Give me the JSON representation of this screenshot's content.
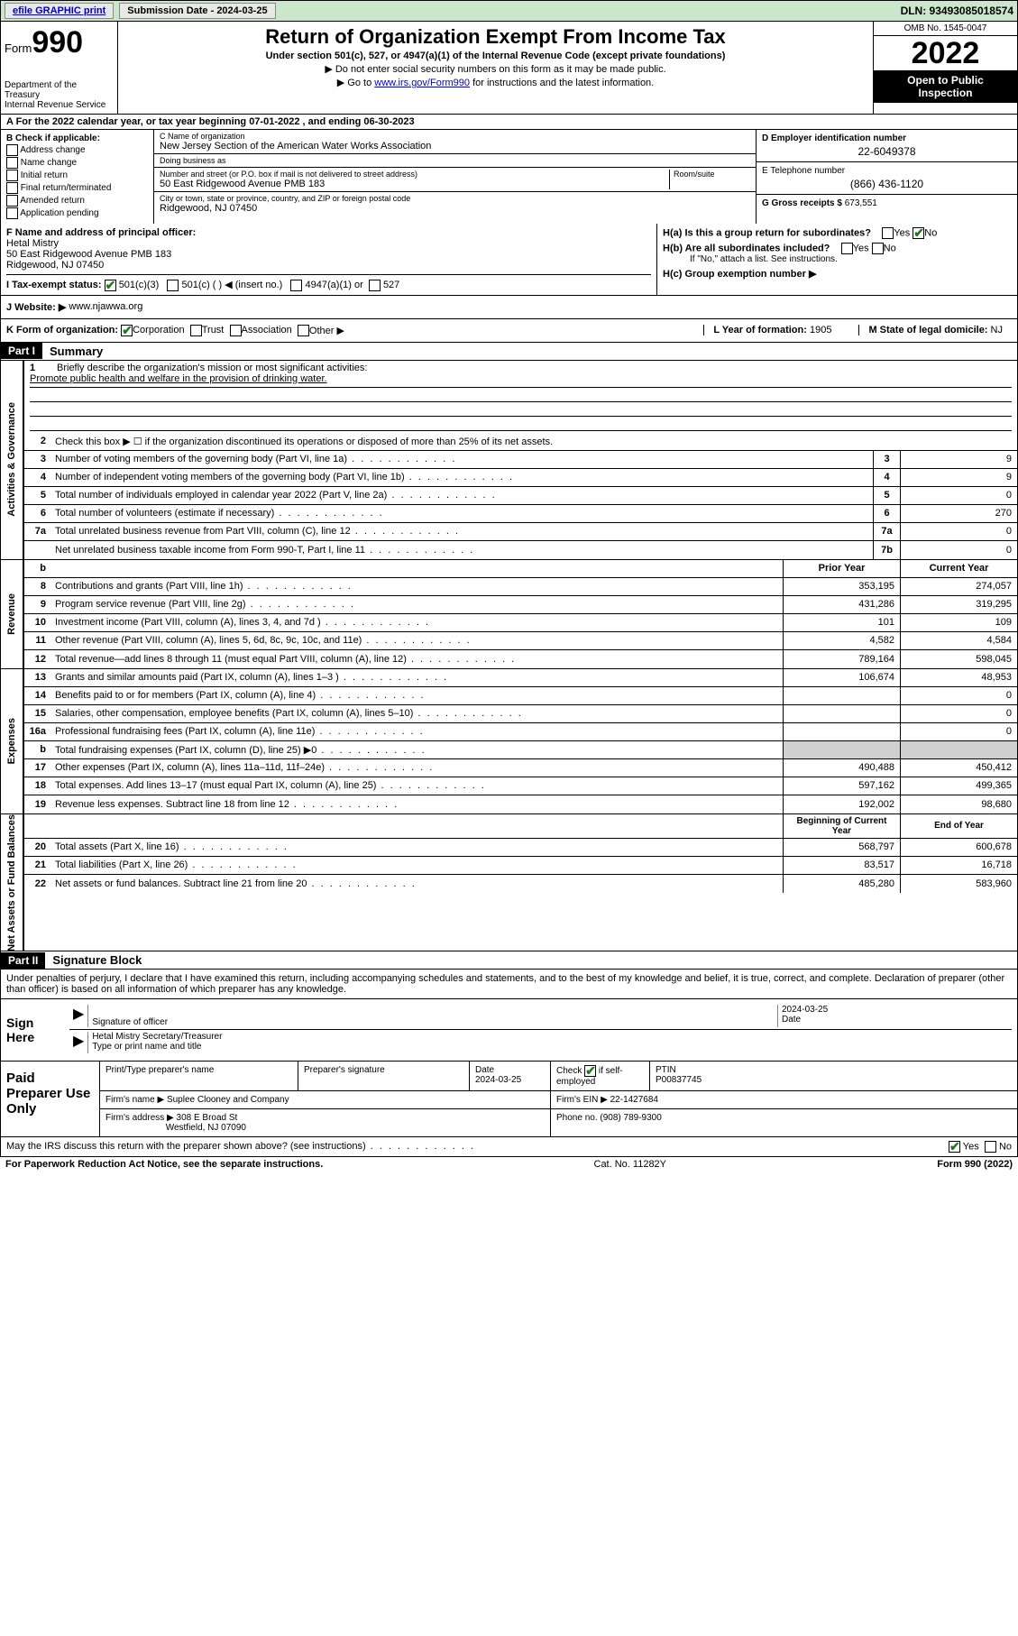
{
  "topbar": {
    "efile": "efile GRAPHIC print",
    "submission_label": "Submission Date - 2024-03-25",
    "dln": "DLN: 93493085018574"
  },
  "header": {
    "form_word": "Form",
    "form_num": "990",
    "dept": "Department of the Treasury\nInternal Revenue Service",
    "title": "Return of Organization Exempt From Income Tax",
    "sub": "Under section 501(c), 527, or 4947(a)(1) of the Internal Revenue Code (except private foundations)",
    "note1": "▶ Do not enter social security numbers on this form as it may be made public.",
    "note2_pre": "▶ Go to ",
    "note2_link": "www.irs.gov/Form990",
    "note2_post": " for instructions and the latest information.",
    "omb": "OMB No. 1545-0047",
    "year": "2022",
    "open1": "Open to Public",
    "open2": "Inspection"
  },
  "rowA": "A For the 2022 calendar year, or tax year beginning 07-01-2022   , and ending 06-30-2023",
  "boxB": {
    "hdr": "B Check if applicable:",
    "items": [
      "Address change",
      "Name change",
      "Initial return",
      "Final return/terminated",
      "Amended return",
      "Application pending"
    ]
  },
  "boxC": {
    "name_label": "C Name of organization",
    "name": "New Jersey Section of the American Water Works Association",
    "dba_label": "Doing business as",
    "dba": "",
    "street_label": "Number and street (or P.O. box if mail is not delivered to street address)",
    "room_label": "Room/suite",
    "street": "50 East Ridgewood Avenue PMB 183",
    "city_label": "City or town, state or province, country, and ZIP or foreign postal code",
    "city": "Ridgewood, NJ  07450"
  },
  "boxD": {
    "ein_label": "D Employer identification number",
    "ein": "22-6049378",
    "phone_label": "E Telephone number",
    "phone": "(866) 436-1120",
    "gross_label": "G Gross receipts $",
    "gross": "673,551"
  },
  "boxF": {
    "label": "F Name and address of principal officer:",
    "name": "Hetal Mistry",
    "addr1": "50 East Ridgewood Avenue PMB 183",
    "addr2": "Ridgewood, NJ  07450"
  },
  "boxH": {
    "ha": "H(a)  Is this a group return for subordinates?",
    "hb": "H(b)  Are all subordinates included?",
    "hb_note": "If \"No,\" attach a list. See instructions.",
    "hc": "H(c)  Group exemption number ▶",
    "yes": "Yes",
    "no": "No"
  },
  "boxI": {
    "label": "I   Tax-exempt status:",
    "o1": "501(c)(3)",
    "o2": "501(c) (  ) ◀ (insert no.)",
    "o3": "4947(a)(1) or",
    "o4": "527"
  },
  "boxJ": {
    "label": "J   Website: ▶ ",
    "val": "www.njawwa.org"
  },
  "boxK": {
    "label": "K Form of organization:",
    "o1": "Corporation",
    "o2": "Trust",
    "o3": "Association",
    "o4": "Other ▶",
    "yof_label": "L Year of formation:",
    "yof": "1905",
    "dom_label": "M State of legal domicile:",
    "dom": "NJ"
  },
  "part1": {
    "hdr": "Part I",
    "title": "Summary",
    "q1": "Briefly describe the organization's mission or most significant activities:",
    "mission": "Promote public health and welfare in the provision of drinking water.",
    "q2": "Check this box ▶ ☐  if the organization discontinued its operations or disposed of more than 25% of its net assets.",
    "lines_gov": [
      {
        "n": "3",
        "d": "Number of voting members of the governing body (Part VI, line 1a)",
        "b": "3",
        "v": "9"
      },
      {
        "n": "4",
        "d": "Number of independent voting members of the governing body (Part VI, line 1b)",
        "b": "4",
        "v": "9"
      },
      {
        "n": "5",
        "d": "Total number of individuals employed in calendar year 2022 (Part V, line 2a)",
        "b": "5",
        "v": "0"
      },
      {
        "n": "6",
        "d": "Total number of volunteers (estimate if necessary)",
        "b": "6",
        "v": "270"
      },
      {
        "n": "7a",
        "d": "Total unrelated business revenue from Part VIII, column (C), line 12",
        "b": "7a",
        "v": "0"
      },
      {
        "n": "",
        "d": "Net unrelated business taxable income from Form 990-T, Part I, line 11",
        "b": "7b",
        "v": "0"
      }
    ],
    "col_prior": "Prior Year",
    "col_curr": "Current Year",
    "lines_rev": [
      {
        "n": "8",
        "d": "Contributions and grants (Part VIII, line 1h)",
        "p": "353,195",
        "c": "274,057"
      },
      {
        "n": "9",
        "d": "Program service revenue (Part VIII, line 2g)",
        "p": "431,286",
        "c": "319,295"
      },
      {
        "n": "10",
        "d": "Investment income (Part VIII, column (A), lines 3, 4, and 7d )",
        "p": "101",
        "c": "109"
      },
      {
        "n": "11",
        "d": "Other revenue (Part VIII, column (A), lines 5, 6d, 8c, 9c, 10c, and 11e)",
        "p": "4,582",
        "c": "4,584"
      },
      {
        "n": "12",
        "d": "Total revenue—add lines 8 through 11 (must equal Part VIII, column (A), line 12)",
        "p": "789,164",
        "c": "598,045"
      }
    ],
    "lines_exp": [
      {
        "n": "13",
        "d": "Grants and similar amounts paid (Part IX, column (A), lines 1–3 )",
        "p": "106,674",
        "c": "48,953"
      },
      {
        "n": "14",
        "d": "Benefits paid to or for members (Part IX, column (A), line 4)",
        "p": "",
        "c": "0"
      },
      {
        "n": "15",
        "d": "Salaries, other compensation, employee benefits (Part IX, column (A), lines 5–10)",
        "p": "",
        "c": "0"
      },
      {
        "n": "16a",
        "d": "Professional fundraising fees (Part IX, column (A), line 11e)",
        "p": "",
        "c": "0"
      },
      {
        "n": "b",
        "d": "Total fundraising expenses (Part IX, column (D), line 25) ▶0",
        "p": "__shade__",
        "c": "__shade__"
      },
      {
        "n": "17",
        "d": "Other expenses (Part IX, column (A), lines 11a–11d, 11f–24e)",
        "p": "490,488",
        "c": "450,412"
      },
      {
        "n": "18",
        "d": "Total expenses. Add lines 13–17 (must equal Part IX, column (A), line 25)",
        "p": "597,162",
        "c": "499,365"
      },
      {
        "n": "19",
        "d": "Revenue less expenses. Subtract line 18 from line 12",
        "p": "192,002",
        "c": "98,680"
      }
    ],
    "col_begin": "Beginning of Current Year",
    "col_end": "End of Year",
    "lines_net": [
      {
        "n": "20",
        "d": "Total assets (Part X, line 16)",
        "p": "568,797",
        "c": "600,678"
      },
      {
        "n": "21",
        "d": "Total liabilities (Part X, line 26)",
        "p": "83,517",
        "c": "16,718"
      },
      {
        "n": "22",
        "d": "Net assets or fund balances. Subtract line 21 from line 20",
        "p": "485,280",
        "c": "583,960"
      }
    ],
    "vlab_gov": "Activities & Governance",
    "vlab_rev": "Revenue",
    "vlab_exp": "Expenses",
    "vlab_net": "Net Assets or Fund Balances"
  },
  "part2": {
    "hdr": "Part II",
    "title": "Signature Block",
    "decl": "Under penalties of perjury, I declare that I have examined this return, including accompanying schedules and statements, and to the best of my knowledge and belief, it is true, correct, and complete. Declaration of preparer (other than officer) is based on all information of which preparer has any knowledge."
  },
  "sign": {
    "left": "Sign Here",
    "sig_label": "Signature of officer",
    "date_label": "Date",
    "date": "2024-03-25",
    "name": "Hetal Mistry  Secretary/Treasurer",
    "name_label": "Type or print name and title"
  },
  "paid": {
    "left": "Paid Preparer Use Only",
    "r1": {
      "c1": "Print/Type preparer's name",
      "c2": "Preparer's signature",
      "c3l": "Date",
      "c3": "2024-03-25",
      "c4": "Check ☑ if self-employed",
      "c5l": "PTIN",
      "c5": "P00837745"
    },
    "r2": {
      "c1": "Firm's name    ▶",
      "c1v": "Suplee Clooney and Company",
      "c2": "Firm's EIN ▶",
      "c2v": "22-1427684"
    },
    "r3": {
      "c1": "Firm's address ▶",
      "c1v": "308 E Broad St",
      "c1v2": "Westfield, NJ  07090",
      "c2": "Phone no.",
      "c2v": "(908) 789-9300"
    }
  },
  "footer": {
    "q": "May the IRS discuss this return with the preparer shown above? (see instructions)",
    "yes": "Yes",
    "no": "No",
    "pra": "For Paperwork Reduction Act Notice, see the separate instructions.",
    "cat": "Cat. No. 11282Y",
    "form": "Form 990 (2022)"
  }
}
